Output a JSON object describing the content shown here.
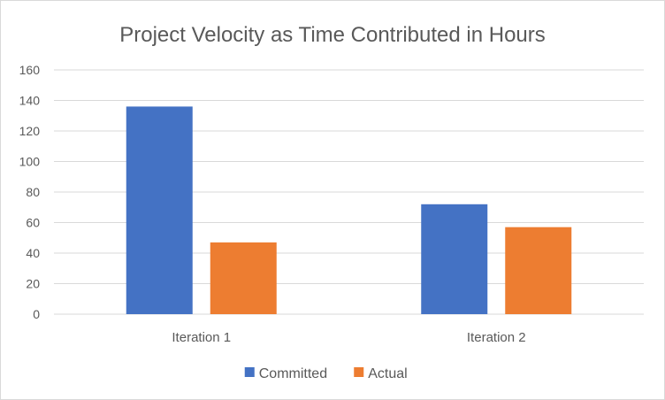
{
  "chart_data": {
    "type": "bar",
    "title": "Project Velocity as Time Contributed in Hours",
    "xlabel": "",
    "ylabel": "",
    "categories": [
      "Iteration 1",
      "Iteration 2"
    ],
    "series": [
      {
        "name": "Committed",
        "color": "#4472c4",
        "values": [
          136,
          72
        ]
      },
      {
        "name": "Actual",
        "color": "#ed7d31",
        "values": [
          47,
          57
        ]
      }
    ],
    "ylim": [
      0,
      160
    ],
    "yticks": [
      "0",
      "20",
      "40",
      "60",
      "80",
      "100",
      "120",
      "140",
      "160"
    ],
    "grid": true,
    "legend_position": "bottom"
  }
}
